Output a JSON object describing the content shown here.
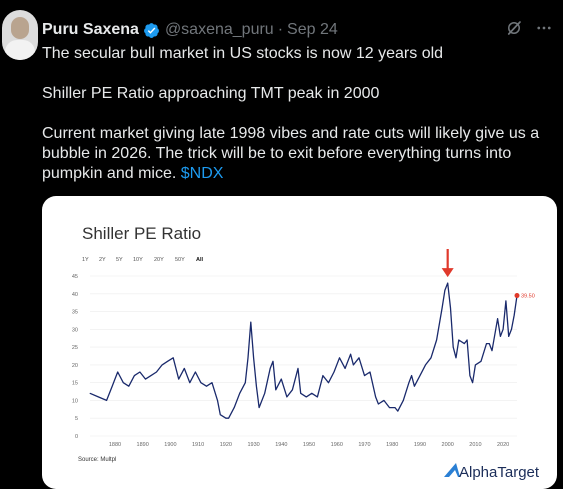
{
  "tweet": {
    "author_name": "Puru Saxena",
    "handle": "@saxena_puru",
    "separator": "·",
    "date": "Sep 24",
    "line1": "The secular bull market in US stocks is now 12 years old",
    "line2": "Shiller PE Ratio approaching TMT peak in 2000",
    "line3": "Current market giving late 1998 vibes and rate cuts will likely give us a bubble in 2026. The trick will be to exit before everything turns into pumpkin and mice.",
    "cashtag": "$NDX",
    "icons": [
      "verified-badge-icon",
      "grok-icon",
      "more-icon"
    ]
  },
  "chart_data": {
    "type": "line",
    "title": "Shiller PE Ratio",
    "range_buttons": [
      "1Y",
      "2Y",
      "5Y",
      "10Y",
      "20Y",
      "50Y",
      "All"
    ],
    "selected_range": "All",
    "ylim": [
      0,
      45
    ],
    "yticks": [
      "0",
      "5",
      "10",
      "15",
      "20",
      "25",
      "30",
      "35",
      "40",
      "45"
    ],
    "xlim": [
      1871,
      2025
    ],
    "xticks": [
      "1880",
      "1890",
      "1900",
      "1910",
      "1920",
      "1930",
      "1940",
      "1950",
      "1960",
      "1970",
      "1980",
      "1990",
      "2000",
      "2010",
      "2020"
    ],
    "grid": true,
    "end_label": "39.50",
    "source": "Source: Multpl",
    "brand": "AlphaTarget",
    "annotation": "red down arrow above 2000 peak",
    "line_color": "#1a2a6c",
    "series": [
      {
        "x": [
          1871,
          1874,
          1877,
          1879,
          1881,
          1883,
          1885,
          1887,
          1889,
          1891,
          1893,
          1895,
          1897,
          1899,
          1901,
          1903,
          1905,
          1907,
          1909,
          1911,
          1913,
          1915,
          1917,
          1918,
          1920,
          1921,
          1923,
          1925,
          1927,
          1928,
          1929,
          1930,
          1931,
          1932,
          1934,
          1936,
          1937,
          1938,
          1940,
          1942,
          1944,
          1946,
          1947,
          1949,
          1951,
          1953,
          1955,
          1957,
          1959,
          1961,
          1963,
          1965,
          1966,
          1968,
          1970,
          1972,
          1974,
          1975,
          1977,
          1979,
          1981,
          1982,
          1984,
          1986,
          1987,
          1988,
          1990,
          1992,
          1994,
          1996,
          1998,
          1999,
          2000,
          2001,
          2002,
          2003,
          2004,
          2006,
          2007,
          2008,
          2009,
          2010,
          2012,
          2014,
          2015,
          2016,
          2018,
          2019,
          2020,
          2021,
          2022,
          2023,
          2024,
          2025
        ],
        "y": [
          12,
          11,
          10,
          14,
          18,
          15,
          14,
          17,
          18,
          16,
          17,
          18,
          20,
          21,
          22,
          16,
          19,
          15,
          18,
          15,
          14,
          15,
          10,
          6,
          5,
          5,
          8,
          12,
          15,
          22,
          32,
          22,
          14,
          8,
          12,
          19,
          21,
          13,
          16,
          11,
          13,
          19,
          12,
          11,
          12,
          11,
          17,
          15,
          18,
          22,
          19,
          23,
          20,
          22,
          17,
          18,
          11,
          9,
          10,
          8,
          8,
          7,
          10,
          15,
          17,
          14,
          17,
          20,
          22,
          27,
          36,
          41,
          43,
          36,
          25,
          22,
          27,
          26,
          27,
          17,
          15,
          20,
          21,
          26,
          26,
          24,
          33,
          28,
          30,
          38,
          28,
          30,
          34,
          39.5
        ]
      }
    ]
  }
}
